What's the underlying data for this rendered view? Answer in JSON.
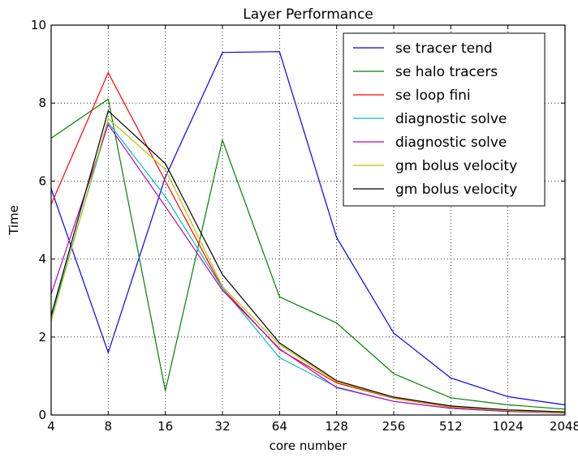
{
  "chart_data": {
    "type": "line",
    "title": "Layer Performance",
    "xlabel": "core number",
    "ylabel": "Time",
    "categories": [
      "4",
      "8",
      "16",
      "32",
      "64",
      "128",
      "256",
      "512",
      "1024",
      "2048"
    ],
    "x": [
      4,
      8,
      16,
      32,
      64,
      128,
      256,
      512,
      1024,
      2048
    ],
    "x_scale": "log2",
    "ylim": [
      0,
      10
    ],
    "yticks": [
      "0",
      "2",
      "4",
      "6",
      "8",
      "10"
    ],
    "grid": true,
    "legend_position": "top-right",
    "series": [
      {
        "name": "se tracer tend",
        "color": "#0000ff",
        "values": [
          5.8,
          1.6,
          6.1,
          9.3,
          9.32,
          4.55,
          2.1,
          0.95,
          0.47,
          0.26
        ]
      },
      {
        "name": "se halo tracers",
        "color": "#008000",
        "values": [
          7.1,
          8.1,
          0.62,
          7.05,
          3.03,
          2.36,
          1.06,
          0.44,
          0.26,
          0.15
        ]
      },
      {
        "name": "se loop fini",
        "color": "#ff0000",
        "values": [
          5.4,
          8.78,
          6.0,
          3.25,
          1.68,
          0.82,
          0.43,
          0.2,
          0.11,
          0.07
        ]
      },
      {
        "name": "diagnostic solve",
        "color": "#00bfbf",
        "values": [
          2.5,
          7.5,
          5.6,
          3.25,
          1.47,
          0.72,
          0.35,
          0.17,
          0.09,
          0.05
        ]
      },
      {
        "name": "diagnostic solve",
        "color": "#bf00bf",
        "values": [
          3.1,
          7.45,
          5.35,
          3.2,
          1.7,
          0.7,
          0.35,
          0.17,
          0.09,
          0.05
        ]
      },
      {
        "name": "gm bolus velocity",
        "color": "#bfbf00",
        "values": [
          2.4,
          7.6,
          6.3,
          3.3,
          1.8,
          0.85,
          0.44,
          0.21,
          0.11,
          0.06
        ]
      },
      {
        "name": "gm bolus velocity",
        "color": "#000000",
        "values": [
          2.55,
          7.8,
          6.45,
          3.6,
          1.85,
          0.88,
          0.46,
          0.23,
          0.13,
          0.08
        ]
      }
    ]
  }
}
